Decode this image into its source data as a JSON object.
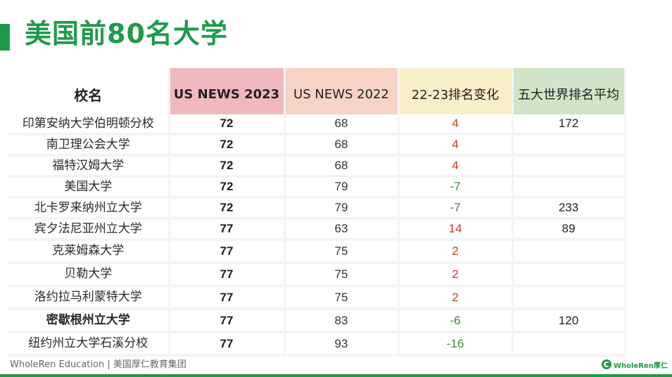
{
  "slide": {
    "title": "美国前80名大学"
  },
  "table": {
    "headers": {
      "name": "校名",
      "us_news_2023": "US NEWS 2023",
      "us_news_2022": "US NEWS 2022",
      "change": "22-23排名变化",
      "world_avg": "五大世界排名平均"
    },
    "rows": [
      {
        "name": "印第安纳大学伯明顿分校",
        "r2023": "72",
        "r2022": "68",
        "change": "4",
        "avg": "172"
      },
      {
        "name": "南卫理公会大学",
        "r2023": "72",
        "r2022": "68",
        "change": "4",
        "avg": ""
      },
      {
        "name": "福特汉姆大学",
        "r2023": "72",
        "r2022": "68",
        "change": "4",
        "avg": ""
      },
      {
        "name": "美国大学",
        "r2023": "72",
        "r2022": "79",
        "change": "-7",
        "avg": ""
      },
      {
        "name": "北卡罗来纳州立大学",
        "r2023": "72",
        "r2022": "79",
        "change": "-7",
        "avg": "233"
      },
      {
        "name": "宾夕法尼亚州立大学",
        "r2023": "77",
        "r2022": "63",
        "change": "14",
        "avg": "89"
      },
      {
        "name": "克莱姆森大学",
        "r2023": "77",
        "r2022": "75",
        "change": "2",
        "avg": ""
      },
      {
        "name": "贝勒大学",
        "r2023": "77",
        "r2022": "75",
        "change": "2",
        "avg": ""
      },
      {
        "name": "洛约拉马利蒙特大学",
        "r2023": "77",
        "r2022": "75",
        "change": "2",
        "avg": ""
      },
      {
        "name": "密歇根州立大学",
        "r2023": "77",
        "r2022": "83",
        "change": "-6",
        "avg": "120"
      },
      {
        "name": "纽约州立大学石溪分校",
        "r2023": "77",
        "r2022": "93",
        "change": "-16",
        "avg": ""
      }
    ]
  },
  "footer": {
    "text": "WholeRen Education | 美国厚仁教育集团",
    "logo_text": "WholeRen厚仁"
  },
  "colors": {
    "brand_green": "#1f9a4b",
    "header_2023": "#f0b9bd",
    "header_2022": "#f7d3c7",
    "header_change": "#f8eec7",
    "header_avg": "#cfe4c9",
    "positive_change": "#d8332a",
    "negative_change": "#3d8a36"
  }
}
